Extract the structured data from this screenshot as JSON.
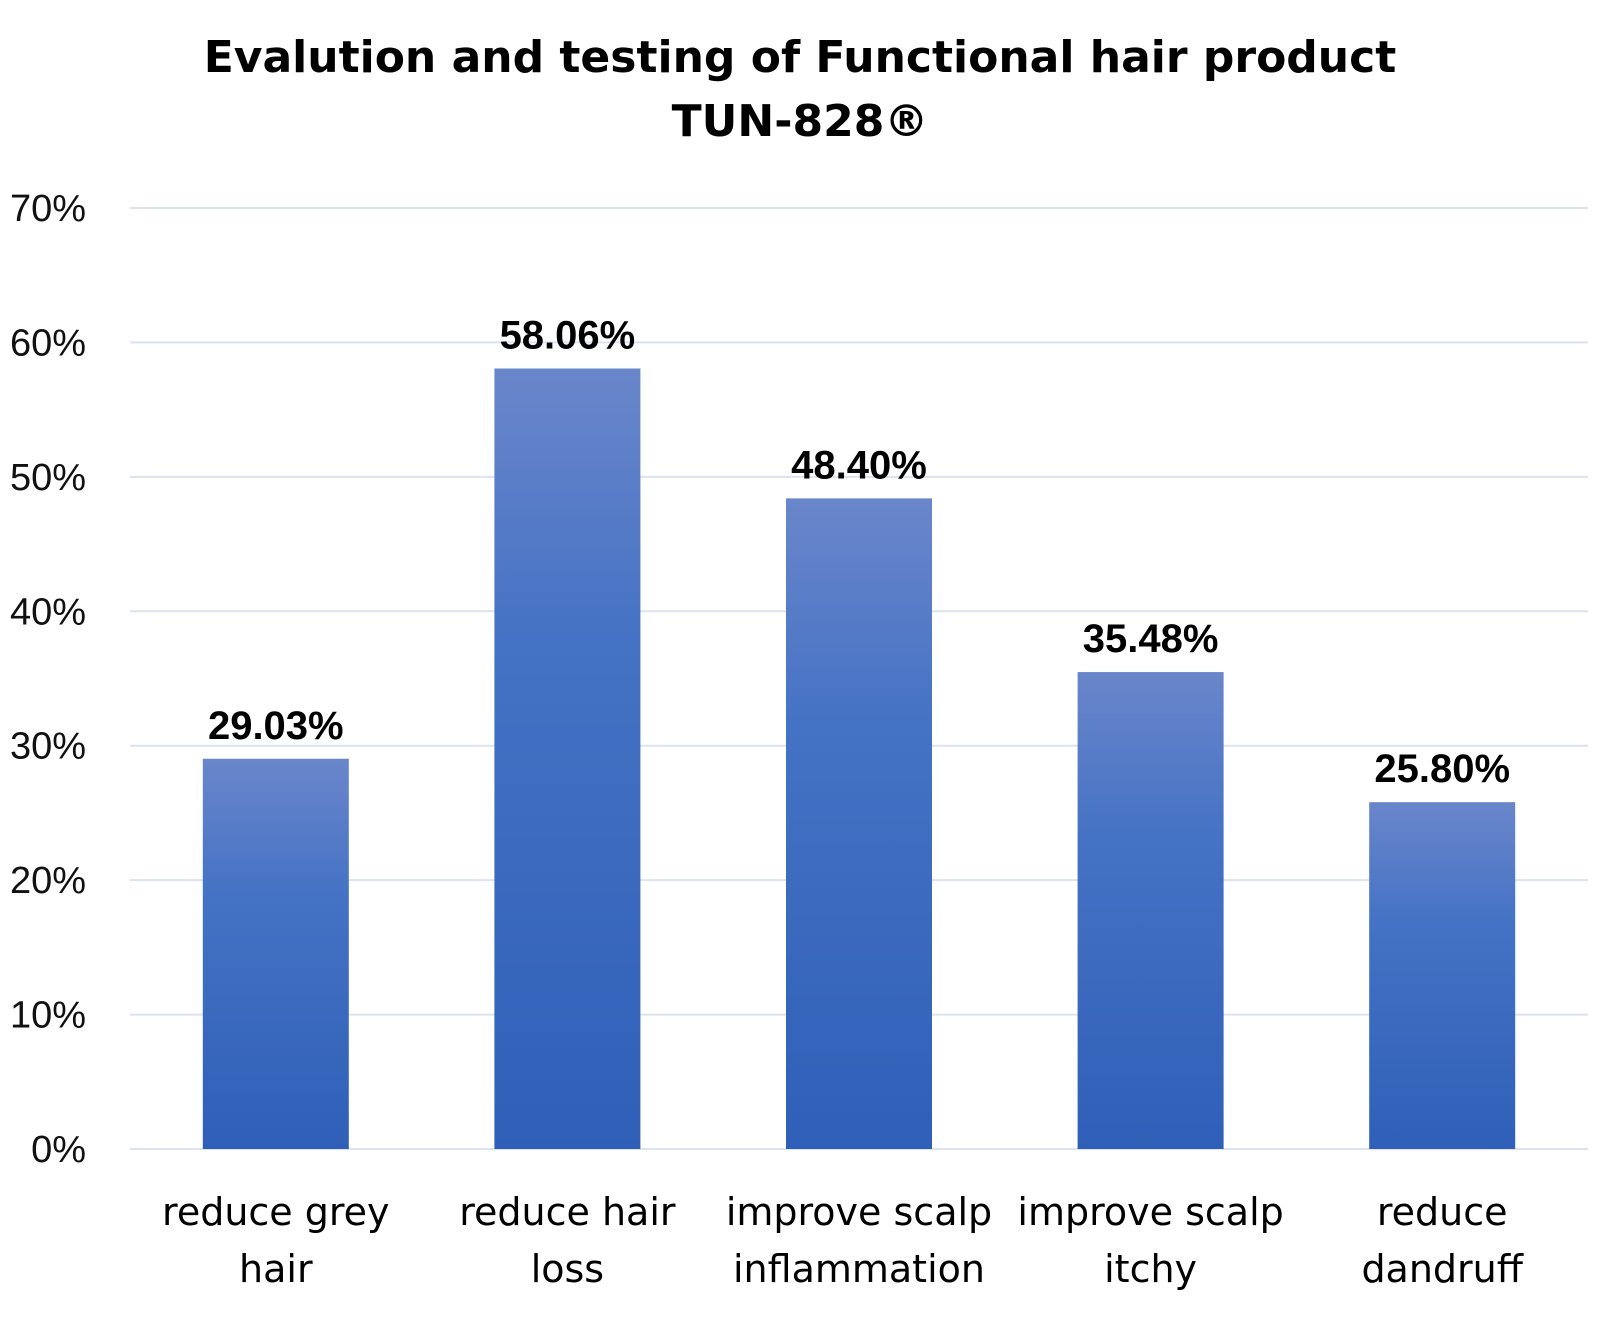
{
  "chart_data": {
    "type": "bar",
    "title_lines": [
      "Evalution and testing of Functional hair product",
      "TUN-828®"
    ],
    "categories": [
      [
        "reduce grey",
        "hair"
      ],
      [
        "reduce hair",
        "loss"
      ],
      [
        "improve scalp",
        "inflammation"
      ],
      [
        "improve scalp",
        "itchy"
      ],
      [
        "reduce",
        "dandruff"
      ]
    ],
    "values": [
      29.03,
      58.06,
      48.4,
      35.48,
      25.8
    ],
    "data_labels": [
      "29.03%",
      "58.06%",
      "48.40%",
      "35.48%",
      "25.80%"
    ],
    "yticks": [
      0,
      10,
      20,
      30,
      40,
      50,
      60,
      70
    ],
    "ytick_labels": [
      "0%",
      "10%",
      "20%",
      "30%",
      "40%",
      "50%",
      "60%",
      "70%"
    ],
    "ylim": [
      0,
      70
    ],
    "xlabel": "",
    "ylabel": "",
    "grid": true,
    "legend": "none",
    "colors": {
      "bar_top": "#6A86CB",
      "bar_mid": "#4472C4",
      "bar_bottom": "#2F5FB8",
      "grid": "#DCE3EE"
    }
  }
}
